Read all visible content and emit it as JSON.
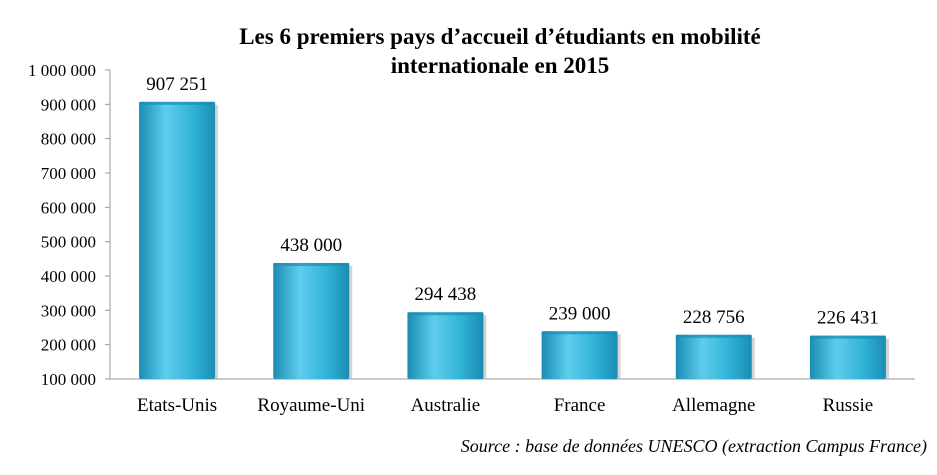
{
  "chart_data": {
    "type": "bar",
    "title_line1": "Les 6 premiers pays d’accueil d’étudiants en mobilité",
    "title_line2": "internationale en 2015",
    "categories": [
      "Etats-Unis",
      "Royaume-Uni",
      "Australie",
      "France",
      "Allemagne",
      "Russie"
    ],
    "values": [
      907251,
      438000,
      294438,
      239000,
      228756,
      226431
    ],
    "value_labels": [
      "907 251",
      "438 000",
      "294 438",
      "239 000",
      "228 756",
      "226 431"
    ],
    "ylim": [
      100000,
      1000000
    ],
    "yticks": [
      100000,
      200000,
      300000,
      400000,
      500000,
      600000,
      700000,
      800000,
      900000,
      1000000
    ],
    "ytick_labels": [
      "100 000",
      "200 000",
      "300 000",
      "400 000",
      "500 000",
      "600 000",
      "700 000",
      "800 000",
      "900 000",
      "1 000 000"
    ],
    "xlabel": "",
    "ylabel": "",
    "grid": false,
    "bar_color": "#31b3d8",
    "bar_color_light": "#5fcdec",
    "bar_color_dark": "#1a8db3"
  },
  "source": "Source : base de données UNESCO (extraction Campus France)"
}
